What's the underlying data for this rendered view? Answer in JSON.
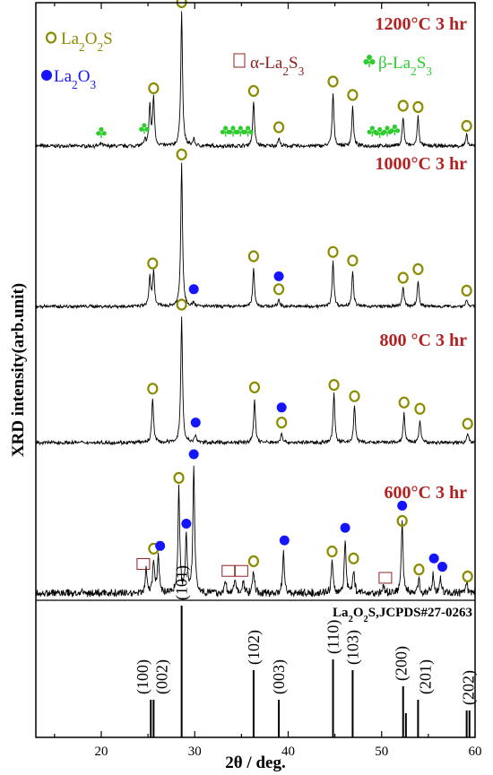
{
  "chart_data": {
    "type": "line",
    "xlabel": "2θ / deg.",
    "ylabel": "XRD intensity(arb.unit)",
    "xlim": [
      13,
      60
    ],
    "xticks": [
      20,
      30,
      40,
      50,
      60
    ],
    "colors": {
      "la2o2s": "#8b8b00",
      "la2o3": "#1414ff",
      "alpha": "#8b2020",
      "beta": "#2ecc2e",
      "temp": "#b22222"
    },
    "legend": {
      "la2o2s": "La2O2S",
      "la2o3": "La2O3",
      "alpha": "α-La2S3",
      "beta": "β-La2S3"
    },
    "series": [
      {
        "name": "1200°C 3 hr",
        "noise": 0.012,
        "peaks": [
          {
            "x": 25.2,
            "h": 0.3
          },
          {
            "x": 25.6,
            "h": 0.36
          },
          {
            "x": 28.6,
            "h": 1.0
          },
          {
            "x": 29.9,
            "h": 0.05
          },
          {
            "x": 36.3,
            "h": 0.33
          },
          {
            "x": 39.0,
            "h": 0.06
          },
          {
            "x": 44.8,
            "h": 0.39
          },
          {
            "x": 46.9,
            "h": 0.29
          },
          {
            "x": 52.3,
            "h": 0.22
          },
          {
            "x": 53.9,
            "h": 0.22
          },
          {
            "x": 59.1,
            "h": 0.08
          },
          {
            "x": 24.7,
            "h": 0.04
          },
          {
            "x": 20.0,
            "h": 0.02
          }
        ],
        "markers": [
          {
            "type": "la2o2s",
            "x": 28.6,
            "y": 1.07
          },
          {
            "type": "la2o2s",
            "x": 25.6,
            "y": 0.43
          },
          {
            "type": "la2o2s",
            "x": 36.3,
            "y": 0.41
          },
          {
            "type": "la2o2s",
            "x": 39.0,
            "y": 0.14
          },
          {
            "type": "la2o2s",
            "x": 44.8,
            "y": 0.48
          },
          {
            "type": "la2o2s",
            "x": 46.9,
            "y": 0.38
          },
          {
            "type": "la2o2s",
            "x": 52.3,
            "y": 0.3
          },
          {
            "type": "la2o2s",
            "x": 53.9,
            "y": 0.29
          },
          {
            "type": "la2o2s",
            "x": 59.1,
            "y": 0.15
          },
          {
            "type": "beta",
            "x": 20.0,
            "y": 0.1
          },
          {
            "type": "beta",
            "x": 24.6,
            "y": 0.13
          },
          {
            "type": "beta",
            "x": 33.3,
            "y": 0.11
          },
          {
            "type": "beta",
            "x": 34.1,
            "y": 0.11
          },
          {
            "type": "beta",
            "x": 34.9,
            "y": 0.11
          },
          {
            "type": "beta",
            "x": 35.7,
            "y": 0.11
          },
          {
            "type": "beta",
            "x": 49.0,
            "y": 0.11
          },
          {
            "type": "beta",
            "x": 49.8,
            "y": 0.1
          },
          {
            "type": "beta",
            "x": 50.6,
            "y": 0.11
          },
          {
            "type": "beta",
            "x": 51.4,
            "y": 0.12
          }
        ]
      },
      {
        "name": "1000°C 3 hr",
        "noise": 0.01,
        "peaks": [
          {
            "x": 25.2,
            "h": 0.21
          },
          {
            "x": 25.6,
            "h": 0.24
          },
          {
            "x": 28.6,
            "h": 1.0
          },
          {
            "x": 29.9,
            "h": 0.03
          },
          {
            "x": 36.3,
            "h": 0.27
          },
          {
            "x": 39.0,
            "h": 0.05
          },
          {
            "x": 44.8,
            "h": 0.32
          },
          {
            "x": 46.9,
            "h": 0.25
          },
          {
            "x": 52.3,
            "h": 0.14
          },
          {
            "x": 53.9,
            "h": 0.18
          },
          {
            "x": 59.1,
            "h": 0.05
          }
        ],
        "markers": [
          {
            "type": "la2o2s",
            "x": 28.6,
            "y": 1.06
          },
          {
            "type": "la2o2s",
            "x": 25.5,
            "y": 0.3
          },
          {
            "type": "la2o3",
            "x": 29.9,
            "y": 0.12
          },
          {
            "type": "la2o2s",
            "x": 36.3,
            "y": 0.35
          },
          {
            "type": "la2o3",
            "x": 39.0,
            "y": 0.21
          },
          {
            "type": "la2o2s",
            "x": 39.0,
            "y": 0.12
          },
          {
            "type": "la2o2s",
            "x": 44.8,
            "y": 0.38
          },
          {
            "type": "la2o2s",
            "x": 46.9,
            "y": 0.32
          },
          {
            "type": "la2o2s",
            "x": 52.3,
            "y": 0.2
          },
          {
            "type": "la2o2s",
            "x": 53.9,
            "y": 0.26
          },
          {
            "type": "la2o2s",
            "x": 59.1,
            "y": 0.11
          }
        ]
      },
      {
        "name": "800 °C 3 hr",
        "noise": 0.013,
        "peaks": [
          {
            "x": 25.5,
            "h": 0.36
          },
          {
            "x": 28.6,
            "h": 1.0
          },
          {
            "x": 30.1,
            "h": 0.06
          },
          {
            "x": 36.4,
            "h": 0.35
          },
          {
            "x": 39.3,
            "h": 0.08
          },
          {
            "x": 44.9,
            "h": 0.39
          },
          {
            "x": 47.1,
            "h": 0.3
          },
          {
            "x": 52.4,
            "h": 0.23
          },
          {
            "x": 54.1,
            "h": 0.18
          },
          {
            "x": 59.2,
            "h": 0.08
          }
        ],
        "markers": [
          {
            "type": "la2o2s",
            "x": 28.6,
            "y": 1.1
          },
          {
            "type": "la2o2s",
            "x": 25.5,
            "y": 0.43
          },
          {
            "type": "la2o3",
            "x": 30.1,
            "y": 0.16
          },
          {
            "type": "la2o2s",
            "x": 36.4,
            "y": 0.44
          },
          {
            "type": "la2o3",
            "x": 39.3,
            "y": 0.28
          },
          {
            "type": "la2o2s",
            "x": 39.3,
            "y": 0.16
          },
          {
            "type": "la2o2s",
            "x": 44.9,
            "y": 0.46
          },
          {
            "type": "la2o2s",
            "x": 47.1,
            "y": 0.37
          },
          {
            "type": "la2o2s",
            "x": 52.4,
            "y": 0.32
          },
          {
            "type": "la2o2s",
            "x": 54.1,
            "y": 0.27
          },
          {
            "type": "la2o2s",
            "x": 59.2,
            "y": 0.15
          }
        ]
      },
      {
        "name": "600°C 3 hr",
        "noise": 0.025,
        "peaks": [
          {
            "x": 24.8,
            "h": 0.17
          },
          {
            "x": 25.6,
            "h": 0.23
          },
          {
            "x": 26.1,
            "h": 0.28
          },
          {
            "x": 28.3,
            "h": 0.75
          },
          {
            "x": 29.1,
            "h": 0.42
          },
          {
            "x": 29.9,
            "h": 0.93
          },
          {
            "x": 33.3,
            "h": 0.08
          },
          {
            "x": 34.3,
            "h": 0.1
          },
          {
            "x": 35.2,
            "h": 0.08
          },
          {
            "x": 36.3,
            "h": 0.16
          },
          {
            "x": 39.5,
            "h": 0.3
          },
          {
            "x": 44.7,
            "h": 0.22
          },
          {
            "x": 46.1,
            "h": 0.38
          },
          {
            "x": 47.0,
            "h": 0.17
          },
          {
            "x": 50.2,
            "h": 0.05
          },
          {
            "x": 52.2,
            "h": 0.52
          },
          {
            "x": 54.0,
            "h": 0.1
          },
          {
            "x": 55.5,
            "h": 0.14
          },
          {
            "x": 56.3,
            "h": 0.11
          },
          {
            "x": 59.1,
            "h": 0.07
          }
        ],
        "markers": [
          {
            "type": "la2o3",
            "x": 29.9,
            "y": 1.0
          },
          {
            "type": "la2o2s",
            "x": 28.3,
            "y": 0.83
          },
          {
            "type": "la2o3",
            "x": 29.1,
            "y": 0.5
          },
          {
            "type": "la2o2s",
            "x": 25.6,
            "y": 0.32
          },
          {
            "type": "la2o3",
            "x": 26.3,
            "y": 0.34
          },
          {
            "type": "alpha",
            "x": 24.5,
            "y": 0.21
          },
          {
            "type": "alpha",
            "x": 33.6,
            "y": 0.16
          },
          {
            "type": "alpha",
            "x": 35.0,
            "y": 0.16
          },
          {
            "type": "la2o2s",
            "x": 36.3,
            "y": 0.23
          },
          {
            "type": "la2o3",
            "x": 39.6,
            "y": 0.38
          },
          {
            "type": "la2o2s",
            "x": 44.7,
            "y": 0.3
          },
          {
            "type": "la2o3",
            "x": 46.1,
            "y": 0.47
          },
          {
            "type": "la2o2s",
            "x": 47.0,
            "y": 0.25
          },
          {
            "type": "alpha",
            "x": 50.4,
            "y": 0.11
          },
          {
            "type": "la2o3",
            "x": 52.2,
            "y": 0.63
          },
          {
            "type": "la2o2s",
            "x": 52.2,
            "y": 0.52
          },
          {
            "type": "la2o2s",
            "x": 54.0,
            "y": 0.17
          },
          {
            "type": "la2o3",
            "x": 55.6,
            "y": 0.25
          },
          {
            "type": "la2o3",
            "x": 56.5,
            "y": 0.19
          },
          {
            "type": "la2o2s",
            "x": 59.2,
            "y": 0.12
          }
        ]
      }
    ],
    "reference": {
      "title": "La2O2S,JCPDS#27-0263",
      "lines": [
        {
          "x": 25.3,
          "h": 0.28,
          "hkl": "(100)"
        },
        {
          "x": 25.6,
          "h": 0.28,
          "hkl": "(002)"
        },
        {
          "x": 28.6,
          "h": 0.98,
          "hkl": "(101)"
        },
        {
          "x": 36.3,
          "h": 0.5,
          "hkl": "(102)"
        },
        {
          "x": 39.0,
          "h": 0.28,
          "hkl": "(003)"
        },
        {
          "x": 44.8,
          "h": 0.58,
          "hkl": "(110)"
        },
        {
          "x": 46.9,
          "h": 0.5,
          "hkl": "(103)"
        },
        {
          "x": 52.3,
          "h": 0.38,
          "hkl": "(200)"
        },
        {
          "x": 53.9,
          "h": 0.28,
          "hkl": "(201)"
        },
        {
          "x": 59.1,
          "h": 0.2,
          "hkl": "(202)"
        },
        {
          "x": 52.6,
          "h": 0.18,
          "hkl": ""
        },
        {
          "x": 59.4,
          "h": 0.2,
          "hkl": ""
        }
      ]
    }
  }
}
